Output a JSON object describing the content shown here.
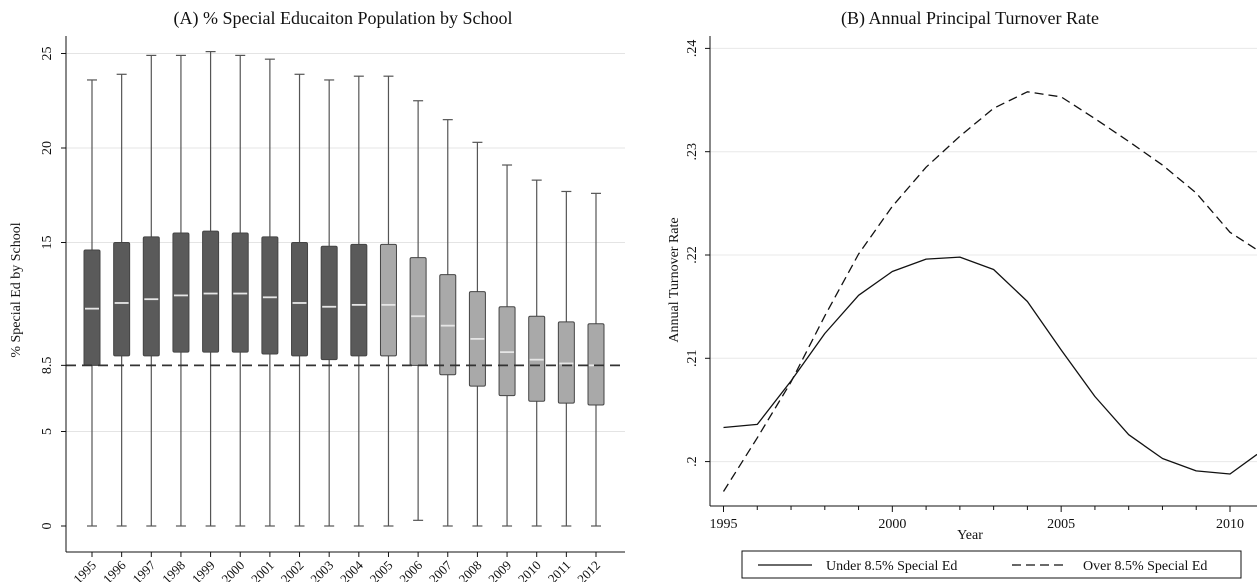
{
  "chart_data": [
    {
      "type": "box",
      "title": "(A) % Special Educaiton Population by School",
      "xlabel": "",
      "ylabel": "% Special Ed by School",
      "ylim": [
        0,
        26
      ],
      "y_ticks": [
        0,
        5,
        8.5,
        15,
        20,
        25
      ],
      "y_tick_labels": [
        "0",
        "5",
        "8.5",
        "15",
        "20",
        "25"
      ],
      "reference_line": {
        "y": 8.5,
        "style": "dashed"
      },
      "grid": true,
      "colors": {
        "dark_box": "#5a5a5a",
        "light_box": "#a9a9a9",
        "median": "#e6e6e6"
      },
      "categories": [
        "1995",
        "1996",
        "1997",
        "1998",
        "1999",
        "2000",
        "2001",
        "2002",
        "2003",
        "2004",
        "2005",
        "2006",
        "2007",
        "2008",
        "2009",
        "2010",
        "2011",
        "2012"
      ],
      "boxes": [
        {
          "min": 0,
          "q1": 8.5,
          "median": 11.5,
          "q3": 14.6,
          "max": 23.6,
          "shade": "dark"
        },
        {
          "min": 0,
          "q1": 9.0,
          "median": 11.8,
          "q3": 15.0,
          "max": 23.9,
          "shade": "dark"
        },
        {
          "min": 0,
          "q1": 9.0,
          "median": 12.0,
          "q3": 15.3,
          "max": 24.9,
          "shade": "dark"
        },
        {
          "min": 0,
          "q1": 9.2,
          "median": 12.2,
          "q3": 15.5,
          "max": 24.9,
          "shade": "dark"
        },
        {
          "min": 0,
          "q1": 9.2,
          "median": 12.3,
          "q3": 15.6,
          "max": 25.1,
          "shade": "dark"
        },
        {
          "min": 0,
          "q1": 9.2,
          "median": 12.3,
          "q3": 15.5,
          "max": 24.9,
          "shade": "dark"
        },
        {
          "min": 0,
          "q1": 9.1,
          "median": 12.1,
          "q3": 15.3,
          "max": 24.7,
          "shade": "dark"
        },
        {
          "min": 0,
          "q1": 9.0,
          "median": 11.8,
          "q3": 15.0,
          "max": 23.9,
          "shade": "dark"
        },
        {
          "min": 0,
          "q1": 8.8,
          "median": 11.6,
          "q3": 14.8,
          "max": 23.6,
          "shade": "dark"
        },
        {
          "min": 0,
          "q1": 9.0,
          "median": 11.7,
          "q3": 14.9,
          "max": 23.8,
          "shade": "dark"
        },
        {
          "min": 0,
          "q1": 9.0,
          "median": 11.7,
          "q3": 14.9,
          "max": 23.8,
          "shade": "light"
        },
        {
          "min": 0.3,
          "q1": 8.5,
          "median": 11.1,
          "q3": 14.2,
          "max": 22.5,
          "shade": "light"
        },
        {
          "min": 0,
          "q1": 8.0,
          "median": 10.6,
          "q3": 13.3,
          "max": 21.5,
          "shade": "light"
        },
        {
          "min": 0,
          "q1": 7.4,
          "median": 9.9,
          "q3": 12.4,
          "max": 20.3,
          "shade": "light"
        },
        {
          "min": 0,
          "q1": 6.9,
          "median": 9.2,
          "q3": 11.6,
          "max": 19.1,
          "shade": "light"
        },
        {
          "min": 0,
          "q1": 6.6,
          "median": 8.8,
          "q3": 11.1,
          "max": 18.3,
          "shade": "light"
        },
        {
          "min": 0,
          "q1": 6.5,
          "median": 8.6,
          "q3": 10.8,
          "max": 17.7,
          "shade": "light"
        },
        {
          "min": 0,
          "q1": 6.4,
          "median": 8.5,
          "q3": 10.7,
          "max": 17.6,
          "shade": "light"
        }
      ]
    },
    {
      "type": "line",
      "title": "(B) Annual Principal Turnover Rate",
      "xlabel": "Year",
      "ylabel": "Annual Turnover Rate",
      "xlim": [
        1994.6,
        2010.8
      ],
      "ylim": [
        0.1957,
        0.2412
      ],
      "x_ticks": [
        1995,
        2000,
        2005,
        2010
      ],
      "x_tick_labels": [
        "1995",
        "2000",
        "2005",
        "2010"
      ],
      "y_ticks": [
        0.2,
        0.21,
        0.22,
        0.23,
        0.24
      ],
      "y_tick_labels": [
        ".2",
        ".21",
        ".22",
        ".23",
        ".24"
      ],
      "grid": true,
      "legend_position": "bottom",
      "x": [
        1995,
        1996,
        1997,
        1998,
        1999,
        2000,
        2001,
        2002,
        2003,
        2004,
        2005,
        2006,
        2007,
        2008,
        2009,
        2010,
        2010.8
      ],
      "series": [
        {
          "name": "Under 8.5% Special Ed",
          "style": "solid",
          "values": [
            0.2033,
            0.2036,
            0.2078,
            0.2124,
            0.2161,
            0.2184,
            0.2196,
            0.2198,
            0.2186,
            0.2155,
            0.2108,
            0.2063,
            0.2026,
            0.2003,
            0.1991,
            0.1988,
            0.2007
          ]
        },
        {
          "name": "Over 8.5% Special Ed",
          "style": "dashed",
          "values": [
            0.1971,
            0.2023,
            0.2077,
            0.2141,
            0.2201,
            0.2247,
            0.2285,
            0.2315,
            0.2342,
            0.2358,
            0.2353,
            0.2332,
            0.231,
            0.2287,
            0.226,
            0.2222,
            0.2205
          ]
        }
      ]
    }
  ]
}
